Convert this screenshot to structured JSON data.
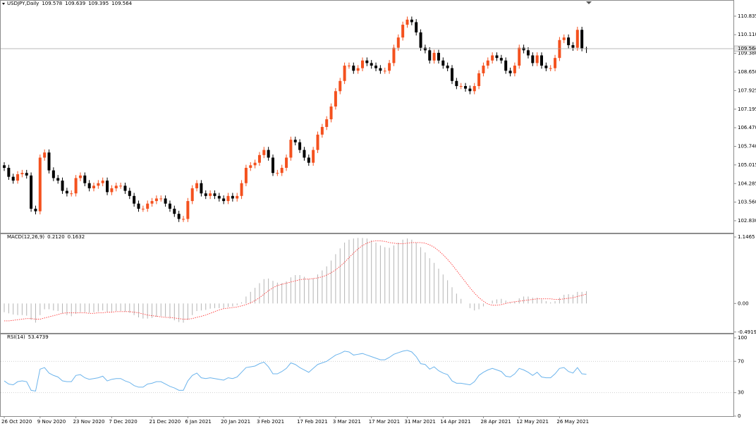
{
  "chart_data": [
    {
      "type": "candlestick",
      "title": "USDJPY,Daily",
      "categories": [
        "26 Oct 2020",
        null,
        null,
        null,
        null,
        null,
        null,
        null,
        "9 Nov 2020",
        null,
        null,
        null,
        null,
        null,
        null,
        null,
        "23 Nov 2020",
        null,
        null,
        null,
        null,
        null,
        null,
        null,
        "7 Dec 2020",
        null,
        null,
        null,
        null,
        null,
        null,
        null,
        null,
        "21 Dec 2020",
        null,
        null,
        null,
        null,
        null,
        null,
        null,
        "6 Jan 2021",
        null,
        null,
        null,
        null,
        null,
        null,
        null,
        "20 Jan 2021",
        null,
        null,
        null,
        null,
        null,
        null,
        null,
        "3 Feb 2021",
        null,
        null,
        null,
        null,
        null,
        null,
        null,
        null,
        "17 Feb 2021",
        null,
        null,
        null,
        null,
        null,
        null,
        null,
        "3 Mar 2021",
        null,
        null,
        null,
        null,
        null,
        null,
        null,
        "17 Mar 2021",
        null,
        null,
        null,
        null,
        null,
        null,
        null,
        "31 Mar 2021",
        null,
        null,
        null,
        null,
        null,
        null,
        null,
        "14 Apr 2021",
        null,
        null,
        null,
        null,
        null,
        null,
        null,
        null,
        "28 Apr 2021",
        null,
        null,
        null,
        null,
        null,
        null,
        null,
        "12 May 2021",
        null,
        null,
        null,
        null,
        null,
        null,
        null,
        null,
        "26 May 2021",
        null,
        null,
        null,
        null,
        null,
        null
      ],
      "open": [
        105.0,
        104.9,
        104.55,
        104.4,
        104.65,
        104.7,
        104.6,
        103.3,
        103.2,
        105.3,
        105.5,
        104.8,
        104.5,
        104.4,
        104.0,
        103.9,
        103.9,
        104.5,
        104.6,
        104.3,
        104.1,
        104.2,
        104.3,
        104.4,
        103.95,
        104.1,
        104.2,
        104.2,
        104.0,
        103.8,
        103.5,
        103.3,
        103.3,
        103.5,
        103.6,
        103.7,
        103.7,
        103.5,
        103.3,
        103.1,
        102.9,
        102.9,
        103.6,
        104.1,
        104.3,
        103.9,
        103.8,
        103.9,
        103.8,
        103.7,
        103.6,
        103.8,
        103.7,
        103.8,
        104.3,
        104.9,
        105.0,
        105.1,
        105.4,
        105.6,
        105.3,
        104.7,
        104.7,
        104.9,
        105.3,
        106.0,
        105.9,
        105.6,
        105.3,
        105.1,
        105.6,
        106.2,
        106.5,
        106.8,
        107.3,
        107.9,
        108.3,
        108.9,
        108.9,
        108.7,
        108.8,
        109.1,
        109.0,
        108.9,
        108.8,
        108.7,
        108.7,
        109.0,
        109.6,
        110.0,
        110.5,
        110.7,
        110.6,
        110.2,
        109.6,
        109.5,
        109.1,
        109.4,
        109.1,
        108.9,
        108.8,
        108.3,
        108.1,
        108.1,
        108.0,
        107.9,
        108.1,
        108.6,
        108.9,
        109.1,
        109.3,
        109.2,
        109.1,
        108.7,
        108.6,
        108.9,
        109.6,
        109.5,
        109.3,
        109.0,
        109.3,
        108.9,
        108.8,
        108.8,
        109.2,
        109.9,
        110.0,
        109.7,
        109.6,
        110.3,
        109.578
      ],
      "high": [
        105.12,
        105.02,
        104.67,
        104.77,
        104.82,
        104.82,
        104.72,
        103.42,
        105.42,
        105.62,
        105.62,
        104.92,
        104.62,
        104.52,
        104.12,
        104.02,
        104.62,
        104.72,
        104.72,
        104.42,
        104.32,
        104.42,
        104.52,
        104.52,
        104.22,
        104.32,
        104.32,
        104.32,
        104.12,
        103.92,
        103.62,
        103.42,
        103.62,
        103.72,
        103.82,
        103.82,
        103.82,
        103.62,
        103.42,
        103.22,
        103.02,
        103.72,
        104.22,
        104.42,
        104.42,
        104.02,
        104.02,
        104.02,
        103.92,
        103.82,
        103.92,
        103.92,
        103.92,
        104.42,
        105.02,
        105.12,
        105.22,
        105.52,
        105.72,
        105.72,
        105.42,
        104.82,
        105.02,
        105.42,
        106.12,
        106.12,
        106.02,
        105.72,
        105.42,
        105.72,
        106.32,
        106.62,
        106.92,
        107.42,
        108.02,
        108.42,
        109.02,
        109.02,
        109.02,
        108.92,
        109.22,
        109.22,
        109.12,
        109.02,
        108.92,
        108.82,
        109.12,
        109.72,
        110.12,
        110.62,
        110.82,
        110.82,
        110.72,
        110.32,
        109.72,
        109.62,
        109.52,
        109.52,
        109.22,
        109.02,
        108.92,
        108.42,
        108.22,
        108.22,
        108.12,
        108.22,
        108.72,
        109.02,
        109.22,
        109.42,
        109.42,
        109.32,
        109.22,
        108.82,
        109.02,
        109.72,
        109.72,
        109.62,
        109.42,
        109.42,
        109.42,
        109.02,
        108.92,
        109.32,
        110.02,
        110.12,
        110.12,
        109.82,
        110.42,
        110.42,
        109.639
      ],
      "low": [
        104.78,
        104.43,
        104.28,
        104.28,
        104.53,
        104.48,
        103.18,
        103.08,
        103.08,
        105.18,
        104.68,
        104.38,
        104.28,
        103.88,
        103.78,
        103.78,
        103.78,
        104.38,
        104.18,
        103.98,
        103.98,
        104.08,
        104.18,
        103.83,
        103.83,
        103.98,
        104.08,
        103.88,
        103.68,
        103.38,
        103.18,
        103.18,
        103.18,
        103.38,
        103.48,
        103.58,
        103.38,
        103.18,
        102.98,
        102.78,
        102.78,
        102.78,
        103.48,
        103.98,
        103.78,
        103.68,
        103.68,
        103.68,
        103.58,
        103.48,
        103.48,
        103.58,
        103.58,
        103.68,
        104.18,
        104.78,
        104.88,
        104.98,
        105.28,
        105.18,
        104.58,
        104.58,
        104.58,
        104.78,
        105.18,
        105.78,
        105.48,
        105.18,
        104.98,
        104.98,
        105.48,
        106.08,
        106.38,
        106.68,
        107.18,
        107.78,
        108.18,
        108.78,
        108.58,
        108.58,
        108.68,
        108.88,
        108.78,
        108.68,
        108.58,
        108.58,
        108.58,
        108.88,
        109.48,
        109.88,
        110.38,
        110.48,
        110.08,
        109.48,
        109.38,
        108.98,
        108.98,
        108.98,
        108.78,
        108.68,
        108.18,
        107.98,
        107.98,
        107.88,
        107.78,
        107.78,
        107.98,
        108.48,
        108.78,
        108.98,
        109.08,
        108.98,
        108.58,
        108.48,
        108.48,
        108.78,
        109.38,
        109.18,
        108.88,
        108.88,
        108.78,
        108.68,
        108.68,
        108.68,
        109.08,
        109.78,
        109.58,
        109.48,
        109.48,
        109.46,
        109.395
      ],
      "close": [
        104.9,
        104.55,
        104.4,
        104.65,
        104.7,
        104.6,
        103.3,
        103.2,
        105.3,
        105.5,
        104.8,
        104.5,
        104.4,
        104.0,
        103.9,
        103.9,
        104.5,
        104.6,
        104.3,
        104.1,
        104.2,
        104.3,
        104.4,
        103.95,
        104.1,
        104.2,
        104.2,
        104.0,
        103.8,
        103.5,
        103.3,
        103.3,
        103.5,
        103.6,
        103.7,
        103.7,
        103.5,
        103.3,
        103.1,
        102.9,
        102.9,
        103.6,
        104.1,
        104.3,
        103.9,
        103.8,
        103.9,
        103.8,
        103.7,
        103.6,
        103.8,
        103.7,
        103.8,
        104.3,
        104.9,
        105.0,
        105.1,
        105.4,
        105.6,
        105.3,
        104.7,
        104.7,
        104.9,
        105.3,
        106.0,
        105.9,
        105.6,
        105.3,
        105.1,
        105.6,
        106.2,
        106.5,
        106.8,
        107.3,
        107.9,
        108.3,
        108.9,
        108.9,
        108.7,
        108.8,
        109.1,
        109.0,
        108.9,
        108.8,
        108.7,
        108.7,
        109.0,
        109.6,
        110.0,
        110.5,
        110.7,
        110.6,
        110.2,
        109.6,
        109.5,
        109.1,
        109.4,
        109.1,
        108.9,
        108.8,
        108.3,
        108.1,
        108.1,
        108.0,
        107.9,
        108.1,
        108.6,
        108.9,
        109.1,
        109.3,
        109.2,
        109.1,
        108.7,
        108.6,
        108.9,
        109.6,
        109.5,
        109.3,
        109.0,
        109.3,
        108.9,
        108.8,
        108.8,
        109.2,
        109.9,
        110.0,
        109.7,
        109.6,
        110.3,
        109.58,
        109.564
      ],
      "up_color": "#f4511e",
      "down_color": "#000000",
      "ylim": [
        102.36,
        111.44
      ],
      "yticks": [
        110.835,
        {
          "value": 110.11,
          "label": "110.110"
        },
        {
          "value": 109.38,
          "label": "109.380"
        },
        {
          "value": 108.65,
          "label": "108.650"
        },
        107.925,
        107.195,
        {
          "value": 106.47,
          "label": "106.470"
        },
        {
          "value": 105.74,
          "label": "105.740"
        },
        105.015,
        104.285,
        {
          "value": 103.56,
          "label": "103.560"
        },
        {
          "value": 102.83,
          "label": "102.830"
        }
      ]
    },
    {
      "type": "macd",
      "title": "MACD(12,26,9)",
      "title_values": [
        {
          "value": 0.212,
          "label": "0.2120"
        },
        {
          "value": 0.1632,
          "label": "0.1632"
        }
      ],
      "histogram": {
        "color": "#b4b4b4",
        "values": [
          -0.15,
          -0.17,
          -0.19,
          -0.2,
          -0.2,
          -0.21,
          -0.28,
          -0.33,
          -0.2,
          -0.1,
          -0.1,
          -0.12,
          -0.13,
          -0.17,
          -0.2,
          -0.22,
          -0.18,
          -0.15,
          -0.15,
          -0.16,
          -0.15,
          -0.14,
          -0.12,
          -0.14,
          -0.14,
          -0.13,
          -0.13,
          -0.14,
          -0.16,
          -0.2,
          -0.24,
          -0.26,
          -0.26,
          -0.25,
          -0.23,
          -0.22,
          -0.23,
          -0.26,
          -0.29,
          -0.32,
          -0.33,
          -0.28,
          -0.2,
          -0.13,
          -0.12,
          -0.11,
          -0.09,
          -0.08,
          -0.08,
          -0.08,
          -0.06,
          -0.05,
          -0.03,
          0.02,
          0.12,
          0.2,
          0.27,
          0.35,
          0.42,
          0.43,
          0.39,
          0.36,
          0.35,
          0.38,
          0.45,
          0.49,
          0.49,
          0.46,
          0.42,
          0.43,
          0.5,
          0.57,
          0.64,
          0.74,
          0.85,
          0.95,
          1.05,
          1.1,
          1.12,
          1.13,
          1.13,
          1.12,
          1.09,
          1.05,
          1.0,
          0.97,
          0.96,
          1.0,
          1.05,
          1.1,
          1.12,
          1.1,
          1.05,
          0.97,
          0.88,
          0.78,
          0.7,
          0.6,
          0.5,
          0.4,
          0.28,
          0.17,
          0.08,
          0.0,
          -0.08,
          -0.12,
          -0.1,
          -0.05,
          0.0,
          0.05,
          0.07,
          0.08,
          0.05,
          0.02,
          0.03,
          0.09,
          0.12,
          0.12,
          0.1,
          0.1,
          0.07,
          0.04,
          0.02,
          0.04,
          0.1,
          0.15,
          0.16,
          0.15,
          0.2,
          0.2,
          0.212
        ]
      },
      "signal": {
        "color": "#ff3b3b",
        "values": [
          -0.3,
          -0.3,
          -0.29,
          -0.28,
          -0.27,
          -0.26,
          -0.26,
          -0.27,
          -0.27,
          -0.25,
          -0.23,
          -0.21,
          -0.19,
          -0.17,
          -0.16,
          -0.16,
          -0.16,
          -0.16,
          -0.16,
          -0.17,
          -0.17,
          -0.16,
          -0.16,
          -0.15,
          -0.15,
          -0.14,
          -0.14,
          -0.14,
          -0.14,
          -0.15,
          -0.16,
          -0.18,
          -0.2,
          -0.21,
          -0.22,
          -0.23,
          -0.24,
          -0.24,
          -0.25,
          -0.26,
          -0.27,
          -0.27,
          -0.26,
          -0.24,
          -0.22,
          -0.2,
          -0.17,
          -0.14,
          -0.11,
          -0.09,
          -0.08,
          -0.07,
          -0.06,
          -0.04,
          -0.02,
          0.01,
          0.05,
          0.1,
          0.16,
          0.22,
          0.27,
          0.31,
          0.33,
          0.35,
          0.37,
          0.39,
          0.41,
          0.42,
          0.42,
          0.43,
          0.44,
          0.46,
          0.49,
          0.53,
          0.58,
          0.64,
          0.71,
          0.79,
          0.87,
          0.94,
          1.0,
          1.04,
          1.07,
          1.08,
          1.08,
          1.07,
          1.05,
          1.04,
          1.03,
          1.03,
          1.04,
          1.05,
          1.05,
          1.05,
          1.04,
          1.01,
          0.97,
          0.91,
          0.84,
          0.76,
          0.67,
          0.57,
          0.47,
          0.37,
          0.27,
          0.18,
          0.1,
          0.04,
          -0.01,
          -0.03,
          -0.03,
          -0.02,
          0.0,
          0.02,
          0.03,
          0.04,
          0.05,
          0.06,
          0.07,
          0.08,
          0.08,
          0.08,
          0.08,
          0.07,
          0.07,
          0.08,
          0.09,
          0.1,
          0.12,
          0.14,
          0.1632
        ]
      },
      "ylim": [
        -0.507,
        1.195
      ],
      "yticks": [
        1.1465,
        {
          "value": 0,
          "label": "0.00"
        },
        -0.4919
      ]
    },
    {
      "type": "line",
      "title": "RSI(14)",
      "color": "#6cb4ec",
      "values": [
        45,
        41,
        40,
        44,
        45,
        44,
        33,
        32,
        60,
        62,
        55,
        52,
        50,
        45,
        44,
        44,
        52,
        53,
        49,
        47,
        48,
        49,
        51,
        45,
        47,
        48,
        48,
        45,
        43,
        39,
        37,
        37,
        41,
        42,
        44,
        44,
        41,
        38,
        36,
        33,
        33,
        45,
        52,
        55,
        49,
        48,
        49,
        48,
        47,
        46,
        49,
        48,
        50,
        56,
        62,
        63,
        64,
        67,
        69,
        63,
        54,
        54,
        57,
        61,
        68,
        66,
        62,
        59,
        56,
        61,
        66,
        68,
        70,
        74,
        78,
        80,
        83,
        82,
        78,
        79,
        80,
        78,
        76,
        74,
        72,
        72,
        75,
        79,
        81,
        83,
        84,
        82,
        76,
        67,
        66,
        60,
        63,
        58,
        55,
        53,
        45,
        42,
        42,
        41,
        40,
        44,
        52,
        56,
        59,
        61,
        59,
        57,
        51,
        50,
        54,
        61,
        59,
        56,
        52,
        56,
        50,
        49,
        49,
        54,
        61,
        62,
        57,
        55,
        62,
        54,
        53.4739
      ],
      "ylim": [
        0,
        104.5
      ],
      "yticks": [
        100,
        70,
        30,
        0
      ],
      "levels": [
        70,
        30
      ]
    }
  ]
}
